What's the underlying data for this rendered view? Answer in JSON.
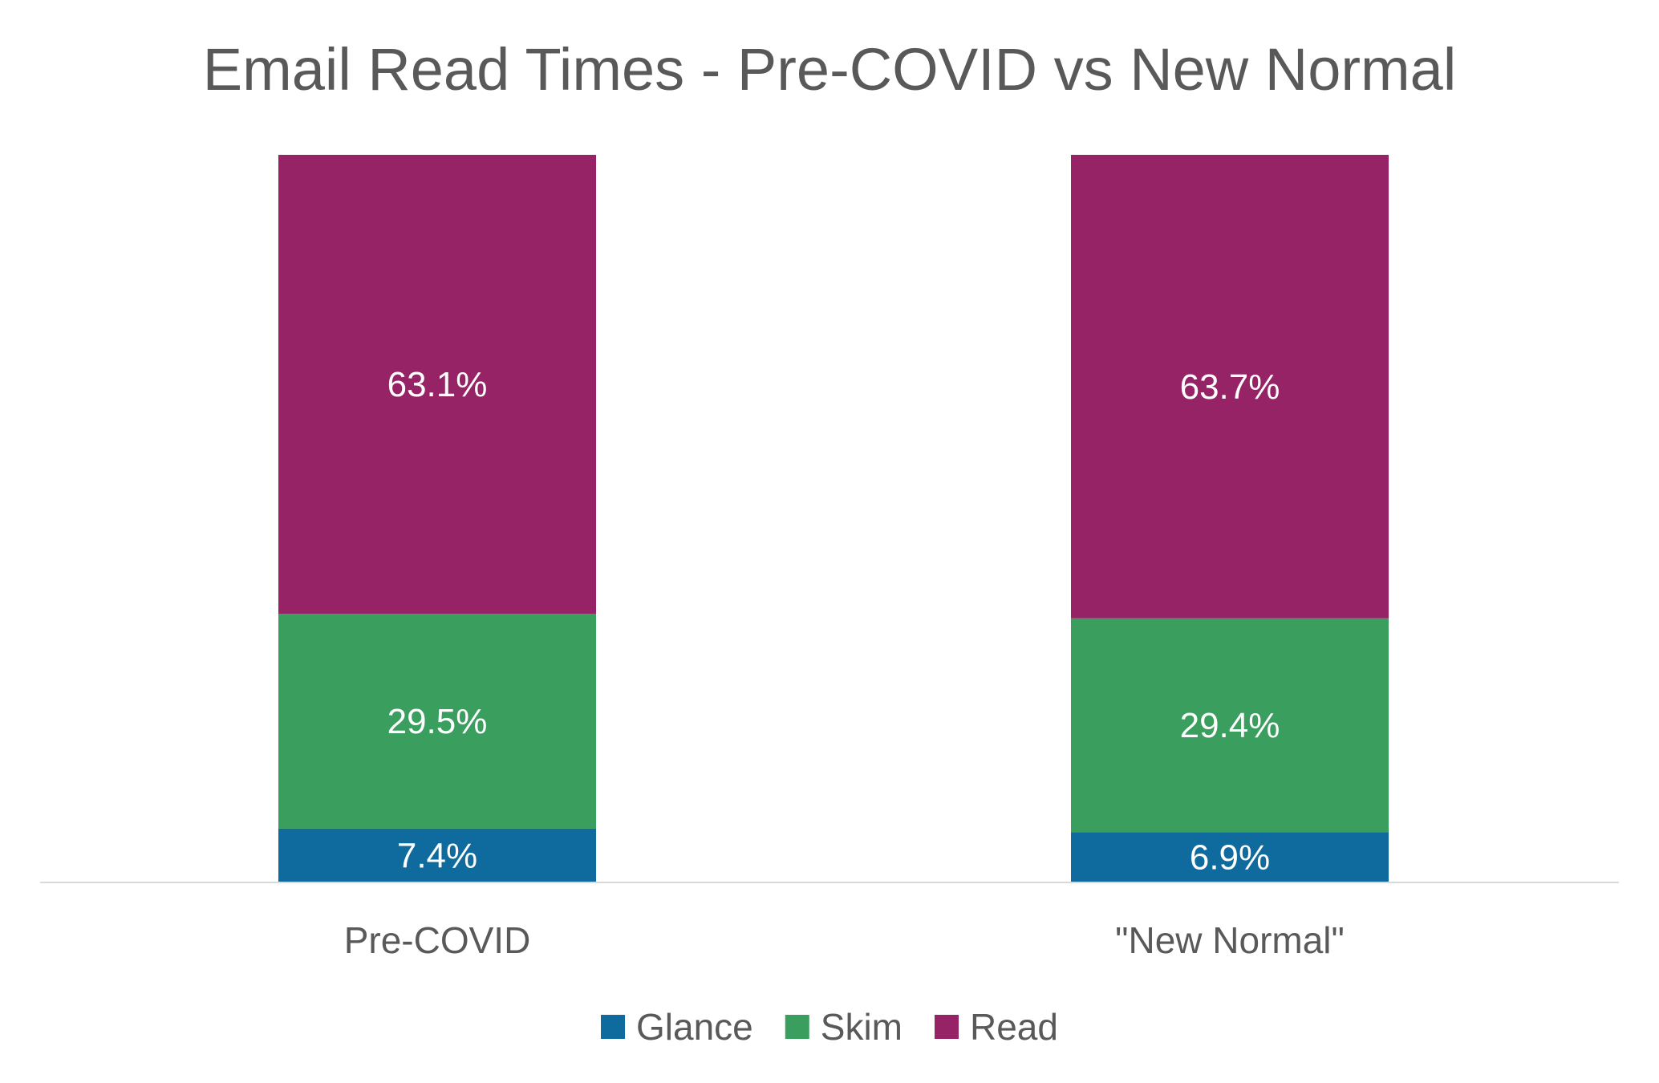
{
  "chart_data": {
    "type": "bar",
    "stacked": true,
    "percent_stacked": true,
    "title": "Email Read Times - Pre-COVID vs New Normal",
    "categories": [
      "Pre-COVID",
      "\"New Normal\""
    ],
    "series": [
      {
        "name": "Glance",
        "color": "#0F6A9E",
        "values": [
          7.4,
          6.9
        ],
        "labels": [
          "7.4%",
          "6.9%"
        ]
      },
      {
        "name": "Skim",
        "color": "#3A9E5E",
        "values": [
          29.5,
          29.4
        ],
        "labels": [
          "29.5%",
          "29.4%"
        ]
      },
      {
        "name": "Read",
        "color": "#962366",
        "values": [
          63.1,
          63.7
        ],
        "labels": [
          "63.1%",
          "63.7%"
        ]
      }
    ],
    "ylim": [
      0,
      100
    ],
    "xlabel": "",
    "ylabel": "",
    "grid": false,
    "legend": "bottom"
  },
  "colors": {
    "axis_line": "#D9D9D9",
    "text": "#595959",
    "data_label": "#FFFFFF",
    "background": "#FFFFFF"
  }
}
